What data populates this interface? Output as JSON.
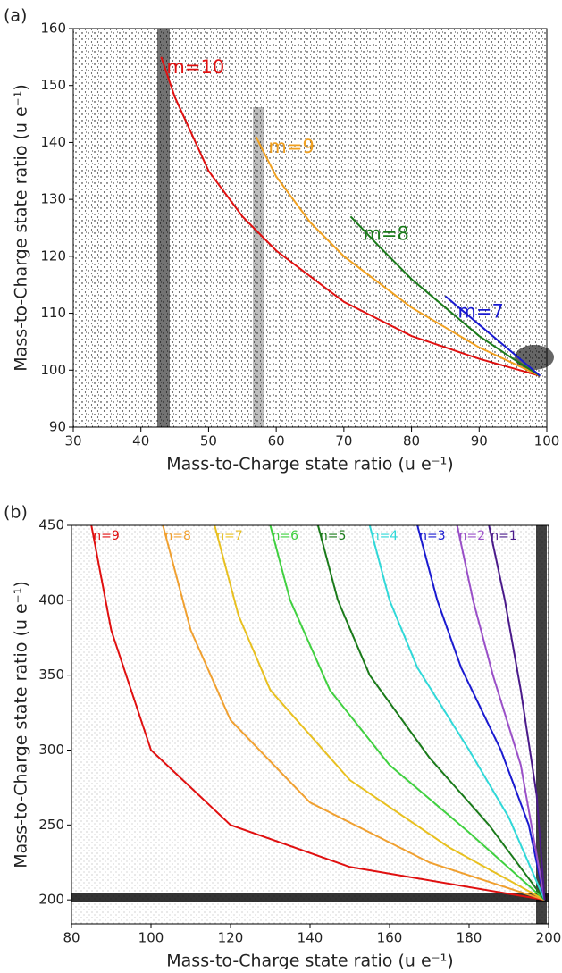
{
  "chart_data": [
    {
      "type": "line",
      "panel": "(a)",
      "xlabel": "Mass-to-Charge state ratio (u e⁻¹)",
      "ylabel": "Mass-to-Charge state ratio (u e⁻¹)",
      "xlim": [
        30,
        100
      ],
      "ylim": [
        90,
        160
      ],
      "xticks": [
        30,
        40,
        50,
        60,
        70,
        80,
        90,
        100
      ],
      "yticks": [
        90,
        100,
        110,
        120,
        130,
        140,
        150,
        160
      ],
      "series": [
        {
          "name": "m=10",
          "color": "#e01010",
          "x": [
            43,
            45,
            50,
            55,
            60,
            70,
            80,
            90,
            99
          ],
          "values": [
            155,
            148,
            135,
            127,
            121,
            112,
            106,
            102,
            99
          ]
        },
        {
          "name": "m=9",
          "color": "#f0a020",
          "x": [
            57,
            60,
            65,
            70,
            80,
            90,
            99
          ],
          "values": [
            141,
            134,
            126,
            120,
            111,
            104,
            99
          ]
        },
        {
          "name": "m=8",
          "color": "#1a7a1a",
          "x": [
            71,
            75,
            80,
            85,
            90,
            95,
            99
          ],
          "values": [
            127,
            122,
            116,
            111,
            106,
            102,
            99
          ]
        },
        {
          "name": "m=7",
          "color": "#1a1ad0",
          "x": [
            85,
            90,
            95,
            99
          ],
          "values": [
            113,
            108,
            103,
            99
          ]
        }
      ]
    },
    {
      "type": "line",
      "panel": "(b)",
      "xlabel": "Mass-to-Charge state ratio (u e⁻¹)",
      "ylabel": "Mass-to-Charge state ratio (u e⁻¹)",
      "xlim": [
        80,
        200
      ],
      "ylim": [
        184,
        450
      ],
      "xticks": [
        80,
        100,
        120,
        140,
        160,
        180,
        200
      ],
      "yticks": [
        200,
        250,
        300,
        350,
        400,
        450
      ],
      "series": [
        {
          "name": "n=9",
          "color": "#e01010",
          "x": [
            85,
            90,
            100,
            120,
            150,
            199
          ],
          "values": [
            450,
            380,
            300,
            250,
            222,
            200
          ]
        },
        {
          "name": "n=8",
          "color": "#f0a030",
          "x": [
            103,
            110,
            120,
            140,
            170,
            199
          ],
          "values": [
            450,
            380,
            320,
            265,
            225,
            200
          ]
        },
        {
          "name": "n=7",
          "color": "#e8c020",
          "x": [
            116,
            122,
            130,
            150,
            175,
            199
          ],
          "values": [
            450,
            390,
            340,
            280,
            235,
            200
          ]
        },
        {
          "name": "n=6",
          "color": "#40d040",
          "x": [
            130,
            135,
            145,
            160,
            180,
            199
          ],
          "values": [
            450,
            400,
            340,
            290,
            245,
            200
          ]
        },
        {
          "name": "n=5",
          "color": "#1a7a1a",
          "x": [
            142,
            147,
            155,
            170,
            185,
            199
          ],
          "values": [
            450,
            400,
            350,
            295,
            250,
            200
          ]
        },
        {
          "name": "n=4",
          "color": "#30d8d8",
          "x": [
            155,
            160,
            167,
            180,
            190,
            199
          ],
          "values": [
            450,
            400,
            355,
            300,
            255,
            200
          ]
        },
        {
          "name": "n=3",
          "color": "#1a1ad0",
          "x": [
            167,
            172,
            178,
            188,
            195,
            199
          ],
          "values": [
            450,
            400,
            355,
            300,
            250,
            200
          ]
        },
        {
          "name": "n=2",
          "color": "#9a50c8",
          "x": [
            177,
            181,
            186,
            193,
            199
          ],
          "values": [
            450,
            400,
            350,
            290,
            200
          ]
        },
        {
          "name": "n=1",
          "color": "#4a1a8a",
          "x": [
            185,
            189,
            193,
            197,
            199
          ],
          "values": [
            450,
            400,
            340,
            270,
            200
          ]
        }
      ]
    }
  ]
}
